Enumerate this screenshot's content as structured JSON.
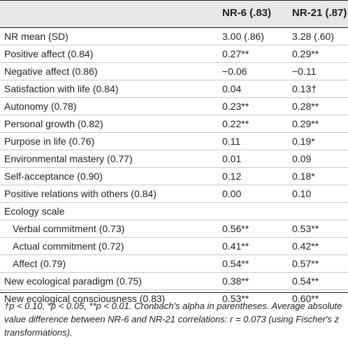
{
  "table": {
    "columns": [
      "",
      "NR-6 (.83)",
      "NR-21 (.87)"
    ],
    "rows": [
      {
        "label": "NR mean (SD)",
        "nr6": "3.00 (.86)",
        "nr21": "3.28 (.60)"
      },
      {
        "label": "Positive affect (0.84)",
        "nr6": "0.27**",
        "nr21": "0.29**"
      },
      {
        "label": "Negative affect (0.86)",
        "nr6": "−0.06",
        "nr21": "−0.11"
      },
      {
        "label": "Satisfaction with life (0.84)",
        "nr6": "0.04",
        "nr21": "0.13†"
      },
      {
        "label": "Autonomy (0.78)",
        "nr6": "0.23**",
        "nr21": "0.28**"
      },
      {
        "label": "Personal growth (0.82)",
        "nr6": "0.22**",
        "nr21": "0.29**"
      },
      {
        "label": "Purpose in life (0.76)",
        "nr6": "0.11",
        "nr21": "0.19*"
      },
      {
        "label": "Environmental mastery (0.77)",
        "nr6": "0.01",
        "nr21": "0.09"
      },
      {
        "label": "Self-acceptance (0.90)",
        "nr6": "0.12",
        "nr21": "0.18*"
      },
      {
        "label": "Positive relations with others (0.84)",
        "nr6": "0.00",
        "nr21": "0.10"
      },
      {
        "label": "Ecology scale",
        "nr6": "",
        "nr21": ""
      },
      {
        "label": "Verbal commitment (0.73)",
        "nr6": "0.56**",
        "nr21": "0.53**",
        "indent": true
      },
      {
        "label": "Actual commitment (0.72)",
        "nr6": "0.41**",
        "nr21": "0.42**",
        "indent": true
      },
      {
        "label": "Affect (0.79)",
        "nr6": "0.54**",
        "nr21": "0.57**",
        "indent": true
      },
      {
        "label": "New ecological paradigm (0.75)",
        "nr6": "0.38**",
        "nr21": "0.54**"
      },
      {
        "label": "New ecological consciousness (0.83)",
        "nr6": "0.53**",
        "nr21": "0.60**"
      }
    ]
  },
  "footnote": {
    "text": "†p < 0.10, *p < 0.05, **p < 0.01. Cronbach's alpha in parentheses. Average absolute value difference between NR-6 and NR-21 correlations: r = 0.073 (using Fischer's z transformations)."
  },
  "colors": {
    "header_background": "#e6e7e8",
    "text": "#231f20",
    "row_divider": "#c8c8c8"
  }
}
